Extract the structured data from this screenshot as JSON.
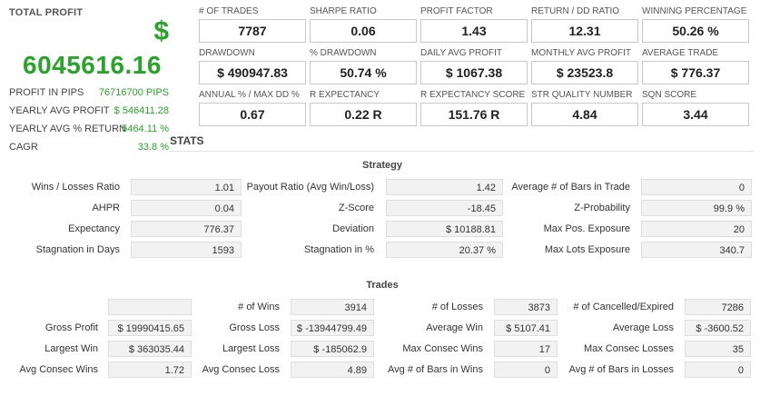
{
  "summary": {
    "title": "TOTAL PROFIT",
    "currency_symbol": "$",
    "total_profit": "6045616.16",
    "rows": [
      {
        "label": "PROFIT IN PIPS",
        "value": "76716700 PIPS"
      },
      {
        "label": "YEARLY AVG PROFIT",
        "value": "$ 546411.28"
      },
      {
        "label": "YEARLY AVG % RETURN",
        "value": "5464.11 %"
      },
      {
        "label": "CAGR",
        "value": "33.8 %"
      }
    ]
  },
  "metrics": [
    {
      "label": "# OF TRADES",
      "value": "7787"
    },
    {
      "label": "SHARPE RATIO",
      "value": "0.06"
    },
    {
      "label": "PROFIT FACTOR",
      "value": "1.43"
    },
    {
      "label": "RETURN / DD RATIO",
      "value": "12.31"
    },
    {
      "label": "WINNING PERCENTAGE",
      "value": "50.26 %"
    },
    {
      "label": "DRAWDOWN",
      "value": "$ 490947.83"
    },
    {
      "label": "% DRAWDOWN",
      "value": "50.74 %"
    },
    {
      "label": "DAILY AVG PROFIT",
      "value": "$ 1067.38"
    },
    {
      "label": "MONTHLY AVG PROFIT",
      "value": "$ 23523.8"
    },
    {
      "label": "AVERAGE TRADE",
      "value": "$ 776.37"
    },
    {
      "label": "ANNUAL % / MAX DD %",
      "value": "0.67"
    },
    {
      "label": "R EXPECTANCY",
      "value": "0.22 R"
    },
    {
      "label": "R EXPECTANCY SCORE",
      "value": "151.76 R"
    },
    {
      "label": "STR QUALITY NUMBER",
      "value": "4.84"
    },
    {
      "label": "SQN SCORE",
      "value": "3.44"
    }
  ],
  "stats_heading": "STATS",
  "strategy": {
    "title": "Strategy",
    "rows": [
      [
        {
          "label": "Wins / Losses Ratio",
          "value": "1.01"
        },
        {
          "label": "Payout Ratio (Avg Win/Loss)",
          "value": "1.42"
        },
        {
          "label": "Average # of Bars in Trade",
          "value": "0"
        }
      ],
      [
        {
          "label": "AHPR",
          "value": "0.04"
        },
        {
          "label": "Z-Score",
          "value": "-18.45"
        },
        {
          "label": "Z-Probability",
          "value": "99.9 %"
        }
      ],
      [
        {
          "label": "Expectancy",
          "value": "776.37"
        },
        {
          "label": "Deviation",
          "value": "$ 10188.81"
        },
        {
          "label": "Max Pos. Exposure",
          "value": "20"
        }
      ],
      [
        {
          "label": "Stagnation in Days",
          "value": "1593"
        },
        {
          "label": "Stagnation in %",
          "value": "20.37 %"
        },
        {
          "label": "Max Lots Exposure",
          "value": "340.7"
        }
      ]
    ]
  },
  "trades": {
    "title": "Trades",
    "rows": [
      [
        {
          "label": "",
          "value": ""
        },
        {
          "label": "# of Wins",
          "value": "3914"
        },
        {
          "label": "# of Losses",
          "value": "3873"
        },
        {
          "label": "# of Cancelled/Expired",
          "value": "7286"
        }
      ],
      [
        {
          "label": "Gross Profit",
          "value": "$ 19990415.65"
        },
        {
          "label": "Gross Loss",
          "value": "$ -13944799.49"
        },
        {
          "label": "Average Win",
          "value": "$ 5107.41"
        },
        {
          "label": "Average Loss",
          "value": "$ -3600.52"
        }
      ],
      [
        {
          "label": "Largest Win",
          "value": "$ 363035.44"
        },
        {
          "label": "Largest Loss",
          "value": "$ -185062.9"
        },
        {
          "label": "Max Consec Wins",
          "value": "17"
        },
        {
          "label": "Max Consec Losses",
          "value": "35"
        }
      ],
      [
        {
          "label": "Avg Consec Wins",
          "value": "1.72"
        },
        {
          "label": "Avg Consec Loss",
          "value": "4.89"
        },
        {
          "label": "Avg # of Bars in Wins",
          "value": "0"
        },
        {
          "label": "Avg # of Bars in Losses",
          "value": "0"
        }
      ]
    ]
  }
}
